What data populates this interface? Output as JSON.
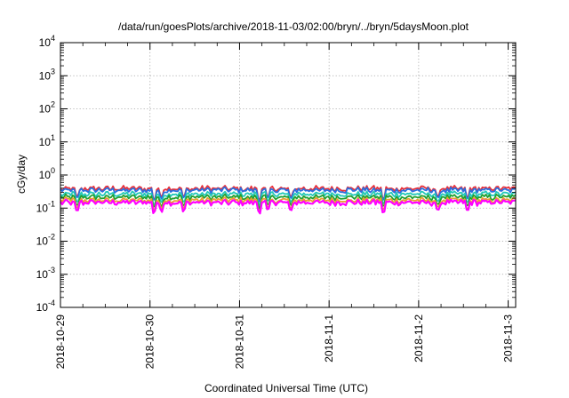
{
  "chart_data": {
    "type": "line",
    "title": "/data/run/goesPlots/archive/2018-11-03/02:00/bryn/../bryn/5daysMoon.plot",
    "xlabel": "Coordinated Universal Time (UTC)",
    "ylabel": "cGy/day",
    "x_axis": {
      "type": "date",
      "range": [
        "2018-10-29",
        "2018-11-03T02:00"
      ],
      "tick_labels": [
        "2018-10-29",
        "2018-10-30",
        "2018-10-31",
        "2018-11-1",
        "2018-11-2",
        "2018-11-3"
      ]
    },
    "y_axis": {
      "scale": "log",
      "range": [
        0.0001,
        10000
      ],
      "tick_labels": [
        {
          "base": "10",
          "exp": "4"
        },
        {
          "base": "10",
          "exp": "3"
        },
        {
          "base": "10",
          "exp": "2"
        },
        {
          "base": "10",
          "exp": "1"
        },
        {
          "base": "10",
          "exp": "0"
        },
        {
          "base": "10",
          "exp": "-1"
        },
        {
          "base": "10",
          "exp": "-2"
        },
        {
          "base": "10",
          "exp": "-3"
        },
        {
          "base": "10",
          "exp": "-4"
        }
      ]
    },
    "grid": true,
    "legend": "none",
    "series": [
      {
        "color": "#e8303a",
        "level": 0.38
      },
      {
        "color": "#2a6fdf",
        "level": 0.34
      },
      {
        "color": "#22c8b8",
        "level": 0.26
      },
      {
        "color": "#22a030",
        "level": 0.21
      },
      {
        "color": "#e8a030",
        "level": 0.17
      },
      {
        "color": "#ff00ff",
        "level": 0.145
      }
    ]
  }
}
